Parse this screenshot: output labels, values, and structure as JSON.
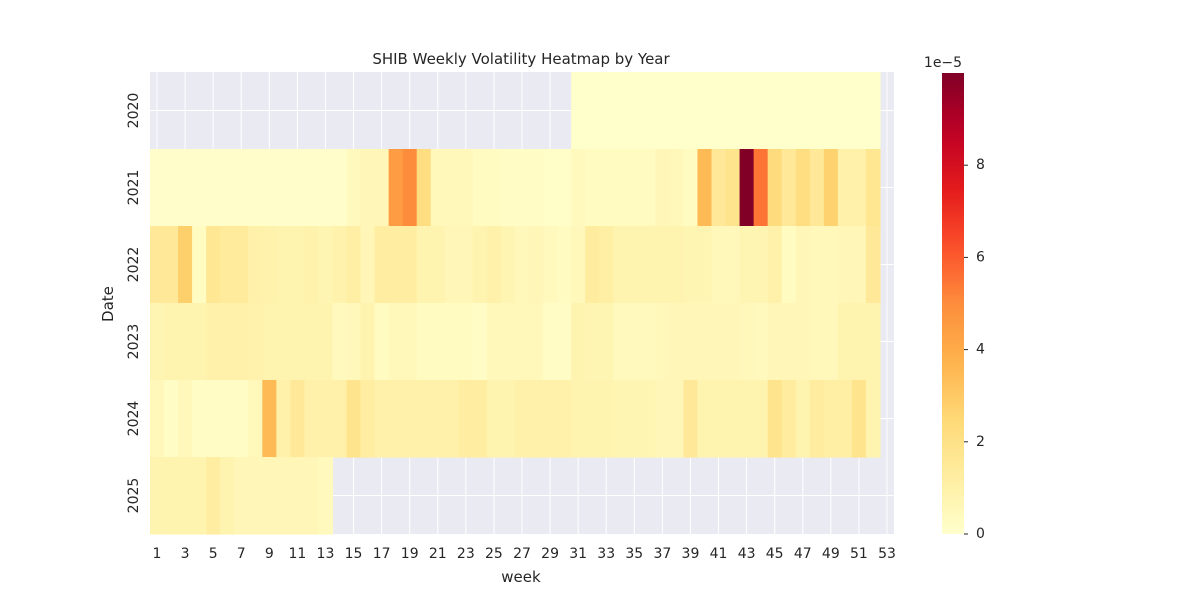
{
  "chart_data": {
    "type": "heatmap",
    "title": "SHIB Weekly Volatility Heatmap by Year",
    "xlabel": "week",
    "ylabel": "Date",
    "rows": [
      "2020",
      "2021",
      "2022",
      "2023",
      "2024",
      "2025"
    ],
    "columns": [
      1,
      2,
      3,
      4,
      5,
      6,
      7,
      8,
      9,
      10,
      11,
      12,
      13,
      14,
      15,
      16,
      17,
      18,
      19,
      20,
      21,
      22,
      23,
      24,
      25,
      26,
      27,
      28,
      29,
      30,
      31,
      32,
      33,
      34,
      35,
      36,
      37,
      38,
      39,
      40,
      41,
      42,
      43,
      44,
      45,
      46,
      47,
      48,
      49,
      50,
      51,
      52,
      53
    ],
    "x_tick_labels": [
      "1",
      "3",
      "5",
      "7",
      "9",
      "11",
      "13",
      "15",
      "17",
      "19",
      "21",
      "23",
      "25",
      "27",
      "29",
      "31",
      "33",
      "35",
      "37",
      "39",
      "41",
      "43",
      "45",
      "47",
      "49",
      "51",
      "53"
    ],
    "colormap": "YlOrRd",
    "missing_color": "#eaeaf2",
    "colorbar": {
      "multiplier_label": "1e−5",
      "min": 0,
      "max": 10,
      "tick_labels": [
        "0",
        "2",
        "4",
        "6",
        "8"
      ]
    },
    "value_units": "1e-5",
    "values": [
      [
        null,
        null,
        null,
        null,
        null,
        null,
        null,
        null,
        null,
        null,
        null,
        null,
        null,
        null,
        null,
        null,
        null,
        null,
        null,
        null,
        null,
        null,
        null,
        null,
        null,
        null,
        null,
        null,
        null,
        null,
        0.02,
        0.02,
        0.02,
        0.02,
        0.02,
        0.02,
        0.02,
        0.02,
        0.02,
        0.02,
        0.02,
        0.02,
        0.02,
        0.02,
        0.02,
        0.02,
        0.02,
        0.02,
        0.02,
        0.02,
        0.02,
        0.02,
        null
      ],
      [
        0.05,
        0.05,
        0.05,
        0.05,
        0.05,
        0.05,
        0.05,
        0.05,
        0.05,
        0.05,
        0.05,
        0.05,
        0.05,
        0.05,
        0.4,
        0.6,
        0.6,
        4.5,
        5.0,
        2.2,
        0.5,
        0.5,
        0.5,
        0.3,
        0.3,
        0.2,
        0.2,
        0.2,
        0.1,
        0.1,
        0.4,
        0.3,
        0.3,
        0.3,
        0.3,
        0.3,
        0.6,
        0.5,
        0.3,
        3.5,
        1.5,
        1.8,
        10.0,
        5.5,
        2.3,
        1.5,
        2.2,
        1.5,
        2.7,
        1.0,
        1.0,
        1.7,
        null
      ],
      [
        1.5,
        1.5,
        2.8,
        0.3,
        1.6,
        1.4,
        1.4,
        1.0,
        0.9,
        0.8,
        0.8,
        0.9,
        0.7,
        0.9,
        1.1,
        0.6,
        1.2,
        1.2,
        1.2,
        0.8,
        0.8,
        0.6,
        0.6,
        0.8,
        1.0,
        0.7,
        0.5,
        0.6,
        0.4,
        0.3,
        0.5,
        1.3,
        1.1,
        0.8,
        0.8,
        0.8,
        0.8,
        0.8,
        0.7,
        0.7,
        0.5,
        0.5,
        0.7,
        0.7,
        1.0,
        0.3,
        0.6,
        0.5,
        0.5,
        0.6,
        0.6,
        1.5,
        null
      ],
      [
        0.7,
        0.8,
        0.8,
        0.8,
        1.0,
        1.0,
        1.0,
        0.9,
        0.8,
        0.8,
        0.8,
        0.8,
        0.8,
        0.4,
        0.5,
        0.8,
        0.3,
        0.5,
        0.5,
        0.3,
        0.3,
        0.3,
        0.3,
        0.2,
        0.5,
        0.5,
        0.5,
        0.5,
        0.2,
        0.2,
        0.8,
        0.7,
        0.7,
        0.4,
        0.4,
        0.4,
        0.5,
        0.6,
        0.6,
        0.6,
        0.6,
        0.6,
        0.5,
        0.4,
        0.6,
        0.6,
        0.6,
        0.5,
        0.5,
        0.8,
        0.8,
        0.8,
        null
      ],
      [
        0.5,
        0.2,
        0.5,
        0.2,
        0.2,
        0.2,
        0.2,
        0.5,
        3.5,
        1.0,
        1.5,
        1.0,
        1.0,
        1.0,
        1.8,
        1.2,
        1.0,
        1.0,
        1.0,
        1.0,
        1.0,
        1.0,
        1.2,
        1.2,
        0.8,
        0.8,
        1.0,
        1.0,
        1.0,
        1.0,
        0.8,
        0.8,
        0.8,
        0.7,
        0.7,
        0.7,
        0.6,
        0.6,
        1.5,
        0.8,
        0.8,
        0.8,
        0.8,
        0.8,
        1.8,
        1.3,
        0.8,
        1.3,
        1.1,
        1.1,
        1.8,
        0.8,
        null
      ],
      [
        0.8,
        0.8,
        0.8,
        0.8,
        1.2,
        0.8,
        0.6,
        0.6,
        0.6,
        0.6,
        0.6,
        0.6,
        0.4,
        null,
        null,
        null,
        null,
        null,
        null,
        null,
        null,
        null,
        null,
        null,
        null,
        null,
        null,
        null,
        null,
        null,
        null,
        null,
        null,
        null,
        null,
        null,
        null,
        null,
        null,
        null,
        null,
        null,
        null,
        null,
        null,
        null,
        null,
        null,
        null,
        null,
        null,
        null,
        null
      ]
    ]
  }
}
